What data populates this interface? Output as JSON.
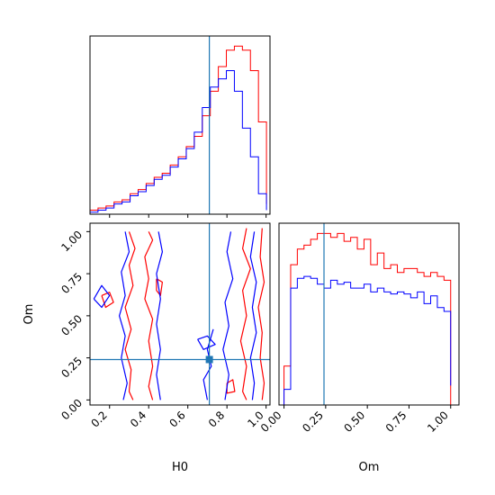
{
  "chart_data": [
    {
      "type": "histogram",
      "panel": "H0 marginal",
      "xlim": [
        0.1,
        1.02
      ],
      "truth": 0.71,
      "bins_x": [
        0.1,
        0.141,
        0.182,
        0.223,
        0.264,
        0.305,
        0.346,
        0.387,
        0.428,
        0.469,
        0.51,
        0.551,
        0.592,
        0.633,
        0.674,
        0.715,
        0.756,
        0.797,
        0.838,
        0.879,
        0.92,
        0.961,
        1.002
      ],
      "series": [
        {
          "color": "#ff0000",
          "values": [
            2,
            3,
            4,
            6,
            7,
            10,
            12,
            15,
            18,
            20,
            24,
            28,
            33,
            38,
            48,
            60,
            72,
            80,
            82,
            80,
            70,
            45,
            5
          ]
        },
        {
          "color": "#0000ff",
          "values": [
            1,
            2,
            3,
            5,
            6,
            9,
            11,
            14,
            17,
            19,
            23,
            27,
            32,
            40,
            52,
            62,
            66,
            70,
            60,
            42,
            28,
            10,
            2
          ]
        }
      ]
    },
    {
      "type": "histogram",
      "panel": "Om marginal",
      "xlabel": "Om",
      "xlim": [
        -0.03,
        1.05
      ],
      "ticks": [
        "0.00",
        "0.25",
        "0.50",
        "0.75",
        "1.00"
      ],
      "tick_values": [
        0,
        0.25,
        0.5,
        0.75,
        1
      ],
      "truth": 0.24,
      "bins_x": [
        0,
        0.04,
        0.08,
        0.12,
        0.16,
        0.2,
        0.24,
        0.28,
        0.32,
        0.36,
        0.4,
        0.44,
        0.48,
        0.52,
        0.56,
        0.6,
        0.64,
        0.68,
        0.72,
        0.76,
        0.8,
        0.84,
        0.88,
        0.92,
        0.96,
        1.0
      ],
      "series": [
        {
          "color": "#ff0000",
          "values": [
            20,
            72,
            80,
            82,
            85,
            88,
            88,
            86,
            88,
            84,
            86,
            80,
            85,
            72,
            78,
            70,
            72,
            68,
            70,
            70,
            68,
            66,
            68,
            66,
            64,
            0
          ]
        },
        {
          "color": "#0000ff",
          "values": [
            8,
            60,
            65,
            66,
            65,
            62,
            60,
            64,
            62,
            63,
            60,
            60,
            62,
            58,
            60,
            58,
            57,
            58,
            57,
            55,
            58,
            52,
            56,
            50,
            48,
            10
          ]
        }
      ]
    },
    {
      "type": "contour",
      "panel": "H0 vs Om",
      "xlabel": "H0",
      "ylabel": "Om",
      "xlim": [
        0.1,
        1.02
      ],
      "ylim": [
        -0.03,
        1.05
      ],
      "xticks": [
        "0.2",
        "0.4",
        "0.6",
        "0.8",
        "1.0"
      ],
      "xtick_values": [
        0.2,
        0.4,
        0.6,
        0.8,
        1.0
      ],
      "yticks": [
        "0.00",
        "0.25",
        "0.50",
        "0.75",
        "1.00"
      ],
      "ytick_values": [
        0,
        0.25,
        0.5,
        0.75,
        1.0
      ],
      "truth": [
        0.71,
        0.24
      ],
      "series": [
        {
          "color": "#ff0000",
          "paths": [
            [
              [
                0.4,
                1.0
              ],
              [
                0.42,
                0.95
              ],
              [
                0.38,
                0.85
              ],
              [
                0.4,
                0.72
              ],
              [
                0.38,
                0.6
              ],
              [
                0.42,
                0.48
              ],
              [
                0.4,
                0.35
              ],
              [
                0.42,
                0.2
              ],
              [
                0.4,
                0.08
              ],
              [
                0.42,
                0.0
              ]
            ],
            [
              [
                0.3,
                1.0
              ],
              [
                0.33,
                0.9
              ],
              [
                0.3,
                0.8
              ],
              [
                0.32,
                0.68
              ],
              [
                0.28,
                0.55
              ],
              [
                0.31,
                0.42
              ],
              [
                0.28,
                0.3
              ],
              [
                0.31,
                0.18
              ],
              [
                0.3,
                0.05
              ],
              [
                0.32,
                0.0
              ]
            ],
            [
              [
                0.9,
                1.02
              ],
              [
                0.88,
                0.9
              ],
              [
                0.92,
                0.78
              ],
              [
                0.88,
                0.65
              ],
              [
                0.9,
                0.5
              ],
              [
                0.87,
                0.35
              ],
              [
                0.9,
                0.2
              ],
              [
                0.88,
                0.05
              ],
              [
                0.9,
                0.0
              ]
            ],
            [
              [
                0.98,
                1.02
              ],
              [
                0.97,
                0.85
              ],
              [
                0.99,
                0.7
              ],
              [
                0.96,
                0.55
              ],
              [
                0.98,
                0.4
              ],
              [
                0.97,
                0.25
              ],
              [
                0.99,
                0.1
              ],
              [
                0.98,
                0.0
              ]
            ],
            [
              [
                0.44,
                0.72
              ],
              [
                0.47,
                0.7
              ],
              [
                0.46,
                0.62
              ],
              [
                0.44,
                0.65
              ],
              [
                0.44,
                0.72
              ]
            ],
            [
              [
                0.16,
                0.62
              ],
              [
                0.2,
                0.64
              ],
              [
                0.22,
                0.58
              ],
              [
                0.18,
                0.55
              ],
              [
                0.16,
                0.62
              ]
            ],
            [
              [
                0.8,
                0.1
              ],
              [
                0.83,
                0.12
              ],
              [
                0.84,
                0.05
              ],
              [
                0.8,
                0.04
              ],
              [
                0.8,
                0.1
              ]
            ]
          ]
        },
        {
          "color": "#0000ff",
          "paths": [
            [
              [
                0.28,
                1.0
              ],
              [
                0.3,
                0.88
              ],
              [
                0.26,
                0.76
              ],
              [
                0.28,
                0.62
              ],
              [
                0.25,
                0.5
              ],
              [
                0.28,
                0.38
              ],
              [
                0.26,
                0.25
              ],
              [
                0.29,
                0.1
              ],
              [
                0.27,
                0.0
              ]
            ],
            [
              [
                0.45,
                1.0
              ],
              [
                0.47,
                0.88
              ],
              [
                0.44,
                0.75
              ],
              [
                0.46,
                0.6
              ],
              [
                0.44,
                0.45
              ],
              [
                0.46,
                0.3
              ],
              [
                0.44,
                0.15
              ],
              [
                0.46,
                0.0
              ]
            ],
            [
              [
                0.82,
                1.0
              ],
              [
                0.8,
                0.88
              ],
              [
                0.83,
                0.72
              ],
              [
                0.79,
                0.58
              ],
              [
                0.81,
                0.44
              ],
              [
                0.78,
                0.3
              ],
              [
                0.81,
                0.15
              ],
              [
                0.79,
                0.0
              ]
            ],
            [
              [
                0.94,
                1.0
              ],
              [
                0.92,
                0.85
              ],
              [
                0.95,
                0.7
              ],
              [
                0.93,
                0.55
              ],
              [
                0.95,
                0.4
              ],
              [
                0.92,
                0.25
              ],
              [
                0.94,
                0.1
              ],
              [
                0.93,
                0.0
              ]
            ],
            [
              [
                0.12,
                0.6
              ],
              [
                0.16,
                0.68
              ],
              [
                0.2,
                0.62
              ],
              [
                0.16,
                0.55
              ],
              [
                0.12,
                0.6
              ]
            ],
            [
              [
                0.65,
                0.36
              ],
              [
                0.7,
                0.38
              ],
              [
                0.74,
                0.33
              ],
              [
                0.68,
                0.3
              ],
              [
                0.65,
                0.36
              ]
            ],
            [
              [
                0.7,
                0.0
              ],
              [
                0.68,
                0.12
              ],
              [
                0.72,
                0.2
              ],
              [
                0.7,
                0.3
              ],
              [
                0.73,
                0.42
              ]
            ]
          ]
        }
      ]
    }
  ]
}
